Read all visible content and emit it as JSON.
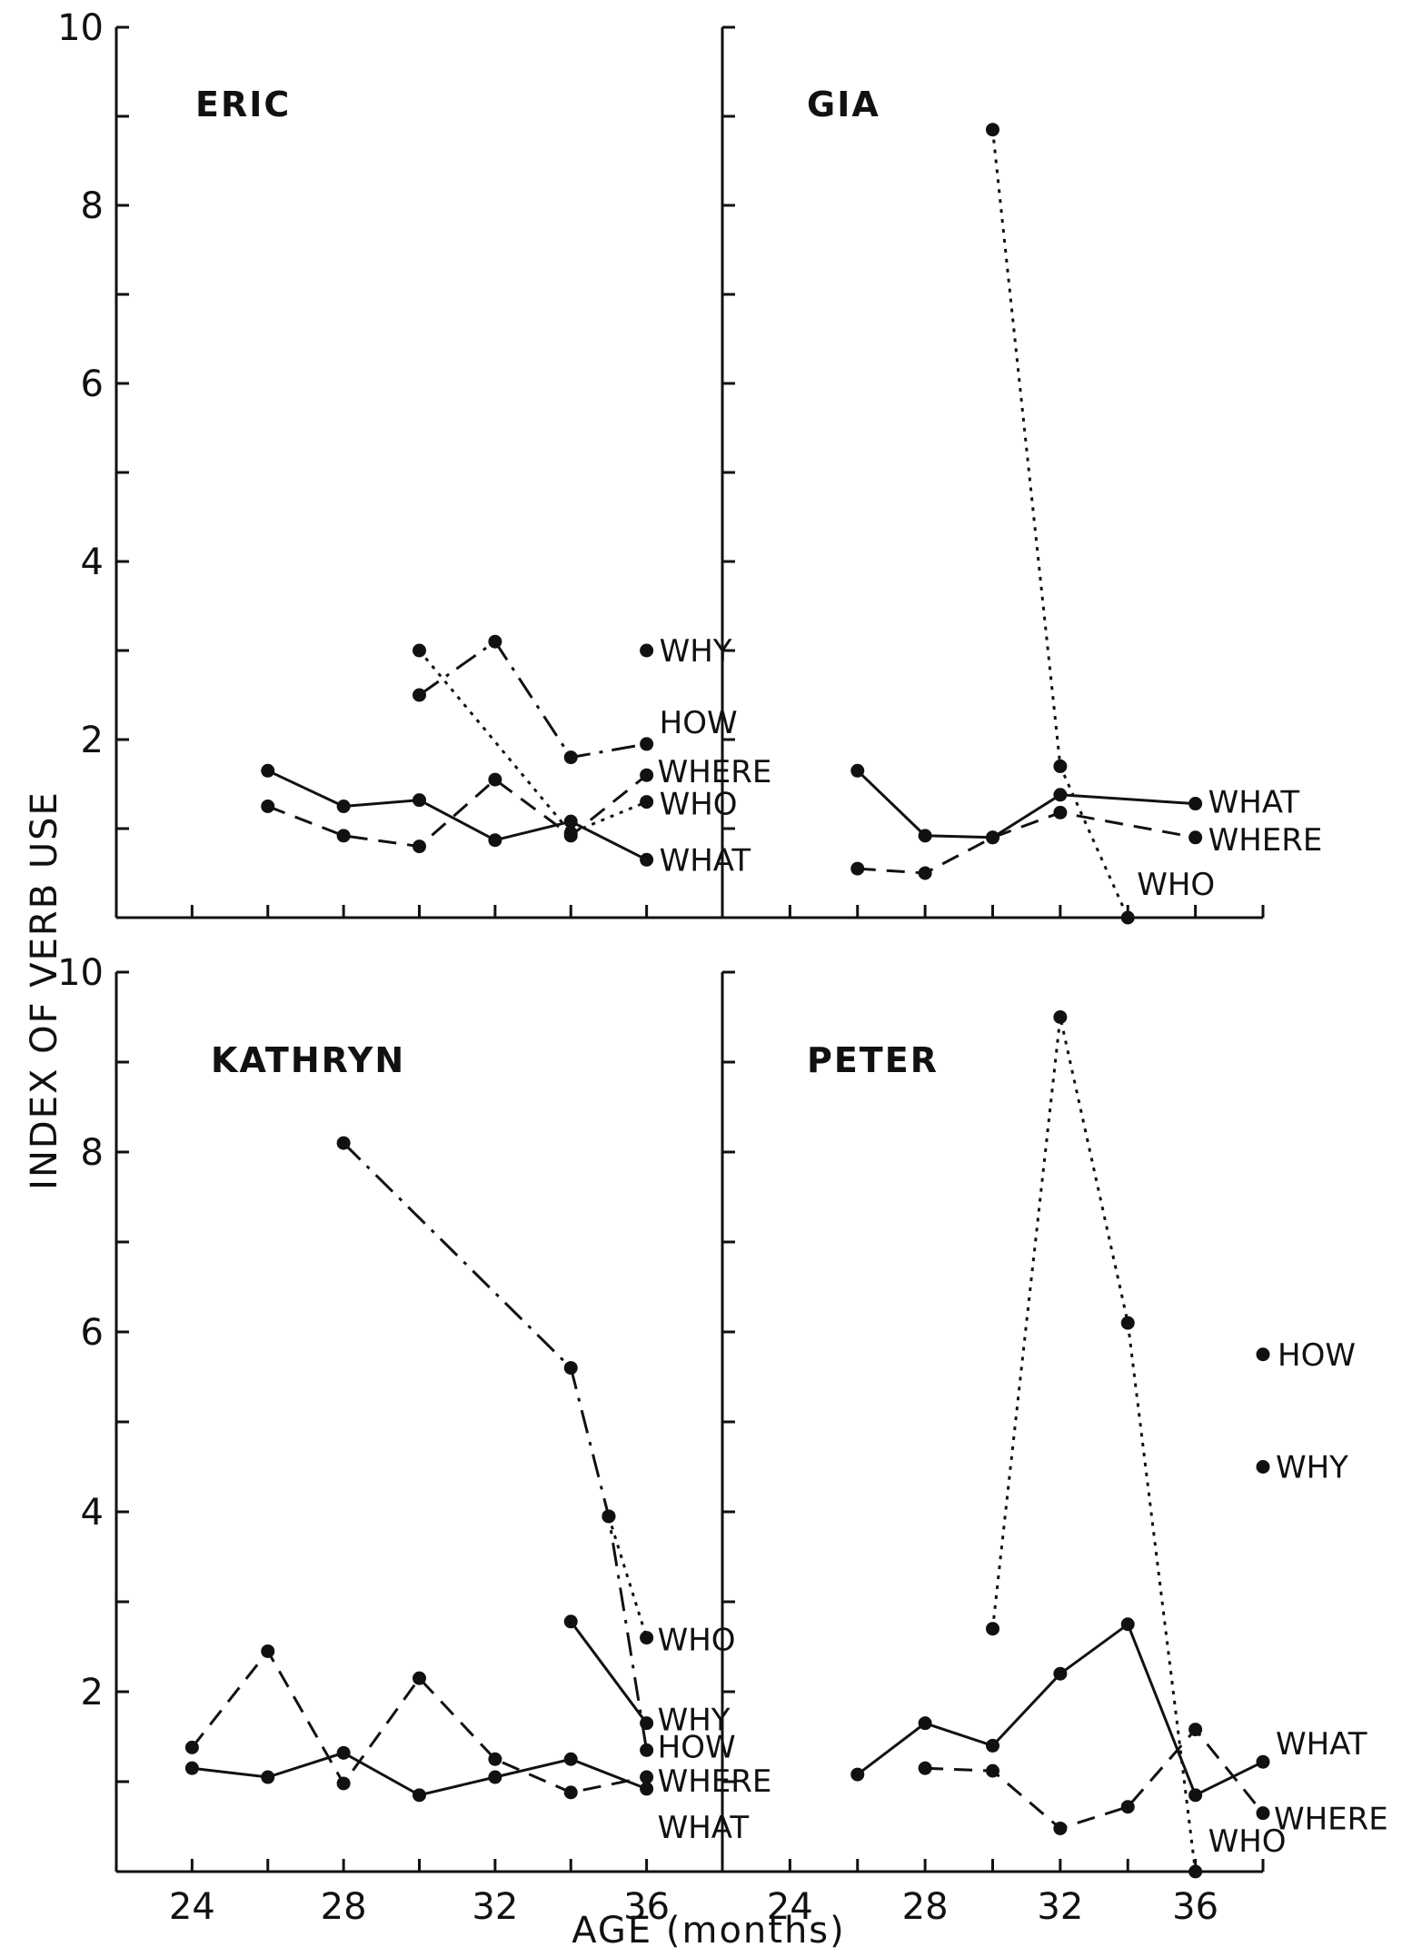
{
  "chart_data": {
    "type": "line",
    "xlabel": "AGE (months)",
    "ylabel": "INDEX OF VERB USE",
    "xlim": [
      22,
      38
    ],
    "ylim": [
      0,
      10
    ],
    "x_ticks": [
      24,
      28,
      32,
      36
    ],
    "y_tick_labels": [
      2,
      4,
      6,
      8,
      10
    ],
    "panels": [
      {
        "title": "ERIC",
        "series": [
          {
            "name": "WHAT",
            "style": "solid",
            "points": [
              [
                26,
                1.65
              ],
              [
                28,
                1.25
              ],
              [
                30,
                1.32
              ],
              [
                32,
                0.87
              ],
              [
                34,
                1.08
              ],
              [
                36,
                0.65
              ]
            ]
          },
          {
            "name": "WHERE",
            "style": "dashed",
            "points": [
              [
                26,
                1.25
              ],
              [
                28,
                0.92
              ],
              [
                30,
                0.8
              ],
              [
                32,
                1.55
              ],
              [
                34,
                0.92
              ],
              [
                36,
                1.6
              ]
            ]
          },
          {
            "name": "WHO",
            "style": "dotted",
            "points": [
              [
                30,
                3.0
              ],
              [
                34,
                0.95
              ],
              [
                36,
                1.3
              ]
            ]
          },
          {
            "name": "HOW",
            "style": "dashdot",
            "points": [
              [
                30,
                2.5
              ],
              [
                32,
                3.1
              ],
              [
                34,
                1.8
              ],
              [
                36,
                1.95
              ]
            ]
          },
          {
            "name": "WHY",
            "style": "point",
            "points": [
              [
                36,
                3.0
              ]
            ]
          }
        ]
      },
      {
        "title": "GIA",
        "series": [
          {
            "name": "WHAT",
            "style": "solid",
            "points": [
              [
                26,
                1.65
              ],
              [
                28,
                0.92
              ],
              [
                30,
                0.9
              ],
              [
                32,
                1.38
              ],
              [
                36,
                1.28
              ]
            ]
          },
          {
            "name": "WHERE",
            "style": "dashed",
            "points": [
              [
                26,
                0.55
              ],
              [
                28,
                0.5
              ],
              [
                30,
                0.9
              ],
              [
                32,
                1.18
              ],
              [
                36,
                0.9
              ]
            ]
          },
          {
            "name": "WHO",
            "style": "dotted",
            "points": [
              [
                30,
                8.85
              ],
              [
                32,
                1.7
              ],
              [
                34,
                0.0
              ]
            ]
          }
        ]
      },
      {
        "title": "KATHRYN",
        "series": [
          {
            "name": "WHAT",
            "style": "solid",
            "points": [
              [
                24,
                1.15
              ],
              [
                26,
                1.05
              ],
              [
                28,
                1.32
              ],
              [
                30,
                0.85
              ],
              [
                32,
                1.05
              ],
              [
                34,
                1.25
              ],
              [
                36,
                0.92
              ]
            ]
          },
          {
            "name": "WHERE",
            "style": "dashed",
            "points": [
              [
                24,
                1.38
              ],
              [
                26,
                2.45
              ],
              [
                28,
                0.98
              ],
              [
                30,
                2.15
              ],
              [
                32,
                1.25
              ],
              [
                34,
                0.88
              ],
              [
                36,
                1.05
              ]
            ]
          },
          {
            "name": "WHO",
            "style": "dotted",
            "points": [
              [
                35,
                3.95
              ],
              [
                36,
                2.6
              ]
            ]
          },
          {
            "name": "WHY",
            "style": "solid",
            "points": [
              [
                34,
                2.78
              ],
              [
                36,
                1.65
              ]
            ]
          },
          {
            "name": "HOW",
            "style": "dashdot",
            "points": [
              [
                28,
                8.1
              ],
              [
                34,
                5.6
              ],
              [
                35,
                3.95
              ],
              [
                36,
                1.35
              ]
            ]
          }
        ]
      },
      {
        "title": "PETER",
        "series": [
          {
            "name": "WHAT",
            "style": "solid",
            "points": [
              [
                26,
                1.08
              ],
              [
                28,
                1.65
              ],
              [
                30,
                1.4
              ],
              [
                32,
                2.2
              ],
              [
                34,
                2.75
              ],
              [
                36,
                0.85
              ],
              [
                38,
                1.22
              ]
            ]
          },
          {
            "name": "WHERE",
            "style": "dashed",
            "points": [
              [
                28,
                1.15
              ],
              [
                30,
                1.12
              ],
              [
                32,
                0.48
              ],
              [
                34,
                0.72
              ],
              [
                36,
                1.58
              ],
              [
                38,
                0.65
              ]
            ]
          },
          {
            "name": "WHO",
            "style": "dotted",
            "points": [
              [
                30,
                2.7
              ],
              [
                32,
                9.5
              ],
              [
                34,
                6.1
              ],
              [
                36,
                0.0
              ]
            ]
          },
          {
            "name": "HOW",
            "style": "point",
            "points": [
              [
                38,
                5.75
              ]
            ]
          },
          {
            "name": "WHY",
            "style": "open-point",
            "points": [
              [
                38,
                4.5
              ]
            ]
          }
        ]
      }
    ]
  }
}
